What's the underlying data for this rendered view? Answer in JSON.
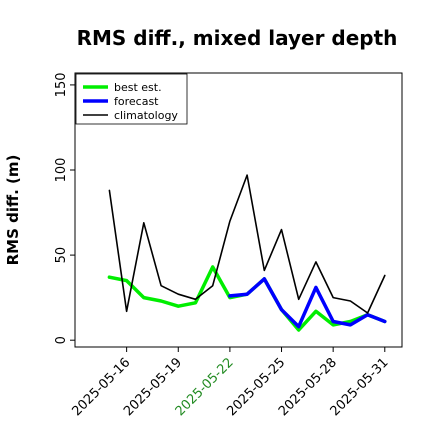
{
  "chart_data": {
    "type": "line",
    "title": "RMS diff., mixed layer depth",
    "ylabel": "RMS diff. (m)",
    "xlabel": "",
    "ylim": [
      -4,
      157
    ],
    "xlim": [
      "2025-05-13",
      "2025-06-01"
    ],
    "grid": false,
    "legend_position": "top-left",
    "yticks": [
      0,
      50,
      100,
      150
    ],
    "xticks": [
      {
        "date": "2025-05-16",
        "label": "2025-05-16",
        "color": "#000000"
      },
      {
        "date": "2025-05-19",
        "label": "2025-05-19",
        "color": "#000000"
      },
      {
        "date": "2025-05-22",
        "label": "2025-05-22",
        "color": "#228B22"
      },
      {
        "date": "2025-05-25",
        "label": "2025-05-25",
        "color": "#000000"
      },
      {
        "date": "2025-05-28",
        "label": "2025-05-28",
        "color": "#000000"
      },
      {
        "date": "2025-05-31",
        "label": "2025-05-31",
        "color": "#000000"
      }
    ],
    "x": [
      "2025-05-15",
      "2025-05-16",
      "2025-05-17",
      "2025-05-18",
      "2025-05-19",
      "2025-05-20",
      "2025-05-21",
      "2025-05-22",
      "2025-05-23",
      "2025-05-24",
      "2025-05-25",
      "2025-05-26",
      "2025-05-27",
      "2025-05-28",
      "2025-05-29",
      "2025-05-30",
      "2025-05-31"
    ],
    "series": [
      {
        "name": "best est.",
        "color": "#00ee00",
        "width": 3.5,
        "values": [
          37,
          35,
          25,
          23,
          20,
          22,
          43,
          25,
          27,
          36,
          18,
          6,
          17,
          9,
          11,
          15,
          11
        ]
      },
      {
        "name": "forecast",
        "color": "#0000ff",
        "width": 3.5,
        "values": [
          null,
          null,
          null,
          null,
          null,
          null,
          null,
          26,
          27,
          36,
          18,
          8,
          31,
          11,
          9,
          15,
          11
        ]
      },
      {
        "name": "climatology",
        "color": "#000000",
        "width": 1.6,
        "values": [
          88,
          17,
          69,
          32,
          27,
          24,
          32,
          70,
          97,
          41,
          65,
          24,
          46,
          25,
          23,
          16,
          38
        ]
      }
    ]
  }
}
